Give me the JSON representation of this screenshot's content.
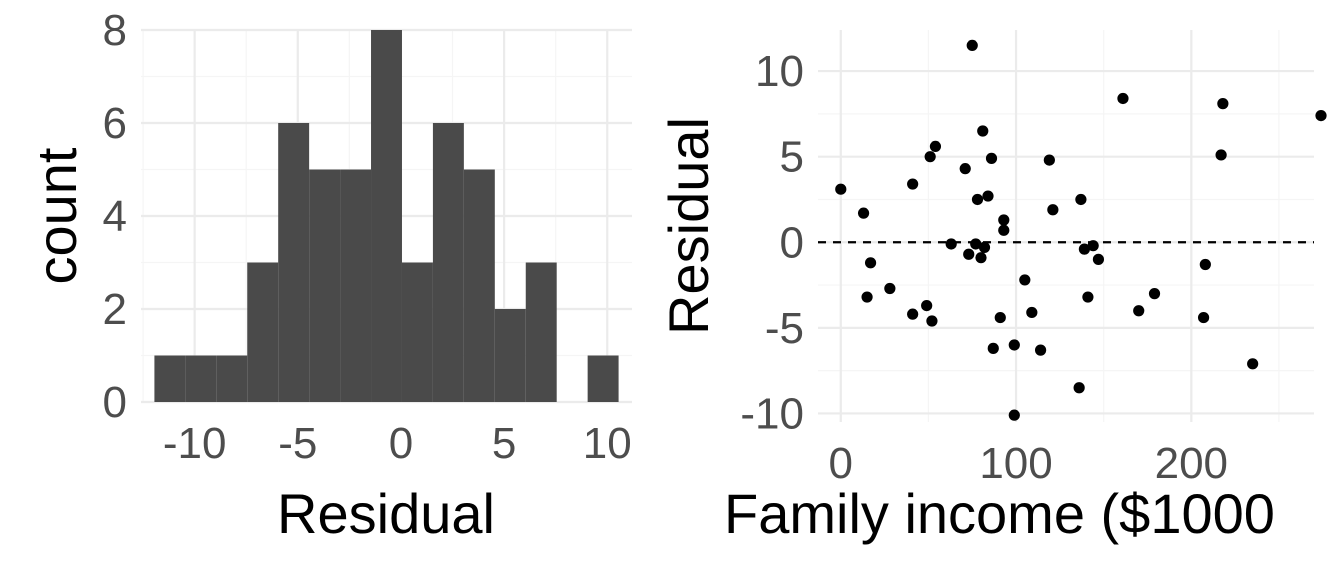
{
  "colors": {
    "bar": "#4a4a4a",
    "point": "#000000",
    "grid_major": "#ebebeb",
    "grid_minor": "#f5f5f5",
    "tick_text": "#4d4d4d",
    "title_text": "#000000"
  },
  "chart_data": [
    {
      "type": "bar",
      "subtype": "histogram",
      "xlabel": "Residual",
      "ylabel": "count",
      "bin_width": 1.5,
      "bins": [
        {
          "x0": -11.95,
          "x1": -10.45,
          "count": 1
        },
        {
          "x0": -10.45,
          "x1": -8.95,
          "count": 1
        },
        {
          "x0": -8.95,
          "x1": -7.45,
          "count": 1
        },
        {
          "x0": -7.45,
          "x1": -5.95,
          "count": 3
        },
        {
          "x0": -5.95,
          "x1": -4.45,
          "count": 6
        },
        {
          "x0": -4.45,
          "x1": -2.95,
          "count": 5
        },
        {
          "x0": -2.95,
          "x1": -1.45,
          "count": 5
        },
        {
          "x0": -1.45,
          "x1": 0.05,
          "count": 8
        },
        {
          "x0": 0.05,
          "x1": 1.55,
          "count": 3
        },
        {
          "x0": 1.55,
          "x1": 3.05,
          "count": 6
        },
        {
          "x0": 3.05,
          "x1": 4.55,
          "count": 5
        },
        {
          "x0": 4.55,
          "x1": 6.05,
          "count": 2
        },
        {
          "x0": 6.05,
          "x1": 7.55,
          "count": 3
        },
        {
          "x0": 7.55,
          "x1": 9.05,
          "count": 0
        },
        {
          "x0": 9.05,
          "x1": 10.55,
          "count": 1
        }
      ],
      "xlim": [
        -12.6,
        11.2
      ],
      "ylim": [
        0,
        8
      ],
      "x_ticks": [
        -10,
        -5,
        0,
        5,
        10
      ],
      "x_tick_labels": [
        "-10",
        "-5",
        "0",
        "5",
        "10"
      ],
      "y_ticks": [
        0,
        2,
        4,
        6,
        8
      ],
      "y_tick_labels": [
        "0",
        "2",
        "4",
        "6",
        "8"
      ],
      "grid": true
    },
    {
      "type": "scatter",
      "xlabel": "Family income ($1000",
      "ylabel": "Residual",
      "hline": 0,
      "xlim": [
        -13,
        270
      ],
      "ylim": [
        -10.5,
        12.4
      ],
      "x_ticks": [
        0,
        100,
        200
      ],
      "x_tick_labels": [
        "0",
        "100",
        "200"
      ],
      "y_ticks": [
        -10,
        -5,
        0,
        5,
        10
      ],
      "y_tick_labels": [
        "-10",
        "-5",
        "0",
        "5",
        "10"
      ],
      "grid": true,
      "points": [
        {
          "x": 0,
          "y": 3.1
        },
        {
          "x": 13,
          "y": 1.7
        },
        {
          "x": 15,
          "y": -3.2
        },
        {
          "x": 17,
          "y": -1.2
        },
        {
          "x": 28,
          "y": -2.7
        },
        {
          "x": 41,
          "y": 3.4
        },
        {
          "x": 41,
          "y": -4.2
        },
        {
          "x": 49,
          "y": -3.7
        },
        {
          "x": 51,
          "y": 5.0
        },
        {
          "x": 52,
          "y": -4.6
        },
        {
          "x": 54,
          "y": 5.6
        },
        {
          "x": 63,
          "y": -0.1
        },
        {
          "x": 71,
          "y": 4.3
        },
        {
          "x": 73,
          "y": -0.7
        },
        {
          "x": 75,
          "y": 11.5
        },
        {
          "x": 77,
          "y": -0.1
        },
        {
          "x": 78,
          "y": 2.5
        },
        {
          "x": 80,
          "y": -0.9
        },
        {
          "x": 81,
          "y": 6.5
        },
        {
          "x": 82,
          "y": -0.3
        },
        {
          "x": 84,
          "y": 2.7
        },
        {
          "x": 86,
          "y": 4.9
        },
        {
          "x": 87,
          "y": -6.2
        },
        {
          "x": 91,
          "y": -4.4
        },
        {
          "x": 93,
          "y": 1.3
        },
        {
          "x": 93,
          "y": 0.7
        },
        {
          "x": 99,
          "y": -6.0
        },
        {
          "x": 99,
          "y": -10.1
        },
        {
          "x": 105,
          "y": -2.2
        },
        {
          "x": 109,
          "y": -4.1
        },
        {
          "x": 114,
          "y": -6.3
        },
        {
          "x": 119,
          "y": 4.8
        },
        {
          "x": 121,
          "y": 1.9
        },
        {
          "x": 136,
          "y": -8.5
        },
        {
          "x": 137,
          "y": 2.5
        },
        {
          "x": 139,
          "y": -0.4
        },
        {
          "x": 141,
          "y": -3.2
        },
        {
          "x": 144,
          "y": -0.2
        },
        {
          "x": 147,
          "y": -1.0
        },
        {
          "x": 161,
          "y": 8.4
        },
        {
          "x": 170,
          "y": -4.0
        },
        {
          "x": 179,
          "y": -3.0
        },
        {
          "x": 207,
          "y": -4.4
        },
        {
          "x": 208,
          "y": -1.3
        },
        {
          "x": 217,
          "y": 5.1
        },
        {
          "x": 218,
          "y": 8.1
        },
        {
          "x": 235,
          "y": -7.1
        },
        {
          "x": 274,
          "y": 7.4
        }
      ]
    }
  ]
}
